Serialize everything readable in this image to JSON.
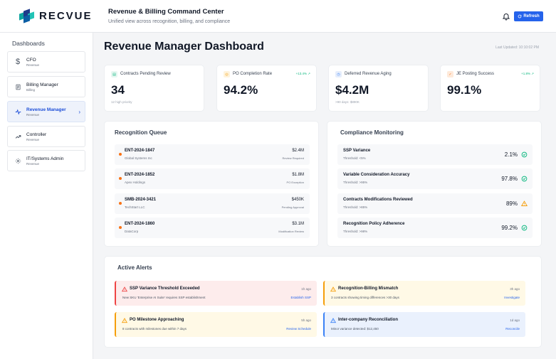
{
  "header": {
    "logo_text": "RECVUE",
    "title": "Revenue & Billing Command Center",
    "subtitle": "Unified view across recognition, billing, and compliance",
    "refresh_label": "Refresh"
  },
  "sidebar": {
    "title": "Dashboards",
    "items": [
      {
        "label": "CFO",
        "sub": "Revenue",
        "icon": "dollar-icon"
      },
      {
        "label": "Billing Manager",
        "sub": "Billing",
        "icon": "document-icon"
      },
      {
        "label": "Revenue Manager",
        "sub": "Revenue",
        "icon": "activity-icon",
        "active": true
      },
      {
        "label": "Controller",
        "sub": "Revenue",
        "icon": "trend-icon"
      },
      {
        "label": "IT/Systems Admin",
        "sub": "Revenue",
        "icon": "gear-icon"
      }
    ]
  },
  "main": {
    "title": "Revenue Manager Dashboard",
    "last_updated": "Last Updated: 10:10:02 PM"
  },
  "kpis": [
    {
      "label": "Contracts Pending Review",
      "value": "34",
      "note": "12 high priority",
      "delta": "",
      "color": "#10b981"
    },
    {
      "label": "PO Completion Rate",
      "value": "94.2%",
      "note": "",
      "delta": "+13.4% ↗",
      "color": "#f59e0b"
    },
    {
      "label": "Deferred Revenue Aging",
      "value": "$4.2M",
      "note": ">90 days: $890K",
      "delta": "",
      "color": "#3b82f6"
    },
    {
      "label": "JE Posting Success",
      "value": "99.1%",
      "note": "",
      "delta": "+1.8% ↗",
      "color": "#f97316"
    }
  ],
  "recognition_queue": {
    "title": "Recognition Queue",
    "rows": [
      {
        "id": "ENT-2024-1847",
        "company": "Global Systems Inc",
        "amount": "$2.4M",
        "status": "Review Required"
      },
      {
        "id": "ENT-2024-1852",
        "company": "Apex Holdings",
        "amount": "$1.8M",
        "status": "PO Exception"
      },
      {
        "id": "SMB-2024-3421",
        "company": "TechStart LLC",
        "amount": "$450K",
        "status": "Pending Approval"
      },
      {
        "id": "ENT-2024-1860",
        "company": "DataCorp",
        "amount": "$3.1M",
        "status": "Modification Review"
      }
    ]
  },
  "compliance": {
    "title": "Compliance Monitoring",
    "rows": [
      {
        "name": "SSP Variance",
        "threshold": "Threshold: <5%",
        "value": "2.1%",
        "status": "ok"
      },
      {
        "name": "Variable Consideration Accuracy",
        "threshold": "Threshold: >95%",
        "value": "97.8%",
        "status": "ok"
      },
      {
        "name": "Contracts Modifications Reviewed",
        "threshold": "Threshold: >85%",
        "value": "89%",
        "status": "warn"
      },
      {
        "name": "Recognition Policy Adherence",
        "threshold": "Threshold: >98%",
        "value": "99.2%",
        "status": "ok"
      }
    ]
  },
  "alerts": {
    "title": "Active Alerts",
    "items": [
      {
        "title": "SSP Variance Threshold Exceeded",
        "time": "1h ago",
        "desc": "New SKU 'Enterprise AI Suite' requires SSP establishment",
        "action": "Establish SSP",
        "level": "critical"
      },
      {
        "title": "Recognition-Billing Mismatch",
        "time": "3h ago",
        "desc": "3 contracts showing timing differences >30 days",
        "action": "Investigate",
        "level": "warning"
      },
      {
        "title": "PO Milestone Approaching",
        "time": "5h ago",
        "desc": "8 contracts with milestones due within 7 days",
        "action": "Review Schedule",
        "level": "warning"
      },
      {
        "title": "Inter-company Reconciliation",
        "time": "1d ago",
        "desc": "Minor variance detected: $12,450",
        "action": "Reconcile",
        "level": "info"
      }
    ]
  },
  "colors": {
    "accent": "#2563eb",
    "critical_bg": "#fdecec",
    "critical_border": "#ef4444",
    "warning_bg": "#fff9e6",
    "warning_border": "#f59e0b",
    "info_bg": "#eaf1fd",
    "info_border": "#3b82f6",
    "ok": "#10b981"
  }
}
